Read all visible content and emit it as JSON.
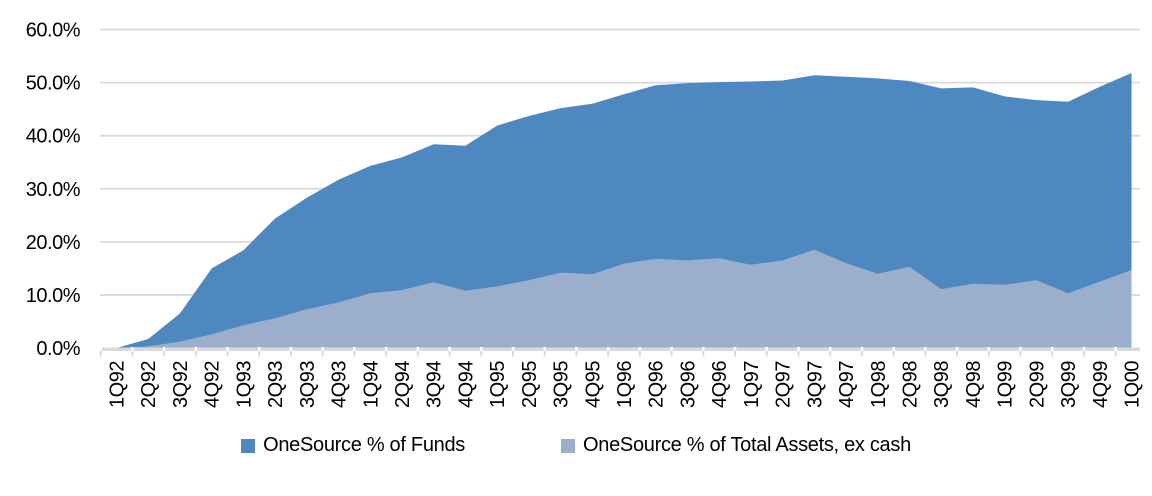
{
  "chart_data": {
    "type": "area",
    "title": "",
    "xlabel": "",
    "ylabel": "",
    "categories": [
      "1Q92",
      "2Q92",
      "3Q92",
      "4Q92",
      "1Q93",
      "2Q93",
      "3Q93",
      "4Q93",
      "1Q94",
      "2Q94",
      "3Q94",
      "4Q94",
      "1Q95",
      "2Q95",
      "3Q95",
      "4Q95",
      "1Q96",
      "2Q96",
      "3Q96",
      "4Q96",
      "1Q97",
      "2Q97",
      "3Q97",
      "4Q97",
      "1Q98",
      "2Q98",
      "3Q98",
      "4Q98",
      "1Q99",
      "2Q99",
      "3Q99",
      "4Q99",
      "1Q00"
    ],
    "series": [
      {
        "name": "OneSource % of Funds",
        "color": "#4d88c0",
        "values": [
          0.0,
          1.7,
          6.5,
          15.0,
          18.4,
          24.4,
          28.3,
          31.7,
          34.3,
          35.9,
          38.4,
          38.1,
          41.9,
          43.7,
          45.2,
          46.0,
          47.8,
          49.5,
          49.9,
          50.1,
          50.2,
          50.4,
          51.4,
          51.1,
          50.8,
          50.3,
          48.9,
          49.1,
          47.4,
          46.7,
          46.4,
          49.2,
          51.8
        ]
      },
      {
        "name": "OneSource % of Total Assets, ex cash",
        "color": "#9bafcc",
        "values": [
          0.0,
          0.3,
          1.2,
          2.6,
          4.3,
          5.6,
          7.3,
          8.6,
          10.3,
          10.9,
          12.4,
          10.8,
          11.6,
          12.8,
          14.2,
          13.9,
          15.9,
          16.8,
          16.5,
          16.9,
          15.7,
          16.5,
          18.5,
          16.0,
          14.0,
          15.3,
          11.1,
          12.1,
          11.9,
          12.8,
          10.3,
          12.5,
          14.7
        ]
      }
    ],
    "mode": "overlaid",
    "ylim": [
      0,
      60
    ],
    "ytick_step": 10,
    "y_tick_labels": [
      "60.0%",
      "50.0%",
      "40.0%",
      "30.0%",
      "20.0%",
      "10.0%",
      "0.0%"
    ],
    "grid": true,
    "grid_color": "#d9d9d9",
    "axis_color": "#d9d9d9",
    "text_color": "#000000",
    "legend_position": "bottom"
  },
  "legend": {
    "item1": "OneSource % of Funds",
    "item2": "OneSource % of Total Assets, ex cash"
  }
}
